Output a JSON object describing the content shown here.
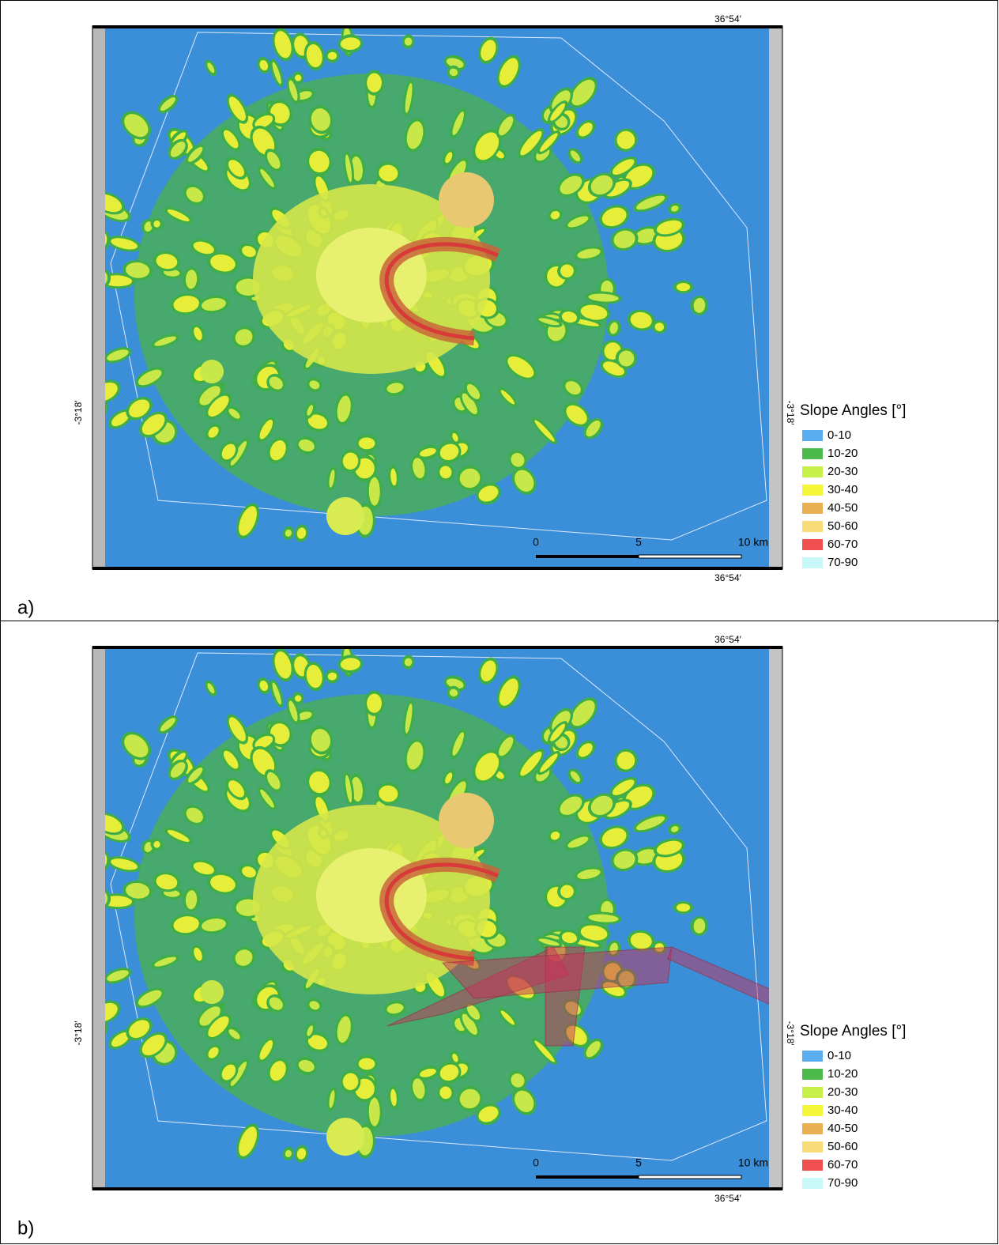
{
  "panels": [
    {
      "label": "a)",
      "map": {
        "top_coordinate": "36°54′",
        "bottom_coordinate": "36°54′",
        "left_coordinate": "-3°18′",
        "right_coordinate": "-3°18′",
        "scale_bar": {
          "labels": [
            "0",
            "5",
            "10 km"
          ]
        }
      },
      "legend": {
        "title": "Slope Angles [°]",
        "items": [
          {
            "label": "0-10",
            "color": "#5aaef0"
          },
          {
            "label": "10-20",
            "color": "#4cbb4c"
          },
          {
            "label": "20-30",
            "color": "#c8f04a"
          },
          {
            "label": "30-40",
            "color": "#f5f53a"
          },
          {
            "label": "40-50",
            "color": "#e8b050"
          },
          {
            "label": "50-60",
            "color": "#f8dc78"
          },
          {
            "label": "60-70",
            "color": "#f05050"
          },
          {
            "label": "70-90",
            "color": "#c8f8f8"
          }
        ]
      }
    },
    {
      "label": "b)",
      "map": {
        "top_coordinate": "36°54′",
        "bottom_coordinate": "36°54′",
        "left_coordinate": "-3°18′",
        "right_coordinate": "-3°18′",
        "scale_bar": {
          "labels": [
            "0",
            "5",
            "10 km"
          ]
        }
      },
      "legend": {
        "title": "Slope Angles [°]",
        "items": [
          {
            "label": "0-10",
            "color": "#5aaef0"
          },
          {
            "label": "10-20",
            "color": "#4cbb4c"
          },
          {
            "label": "20-30",
            "color": "#c8f04a"
          },
          {
            "label": "30-40",
            "color": "#f5f53a"
          },
          {
            "label": "40-50",
            "color": "#e8b050"
          },
          {
            "label": "50-60",
            "color": "#f8dc78"
          },
          {
            "label": "60-70",
            "color": "#f05050"
          },
          {
            "label": "70-90",
            "color": "#c8f8f8"
          }
        ]
      }
    }
  ]
}
